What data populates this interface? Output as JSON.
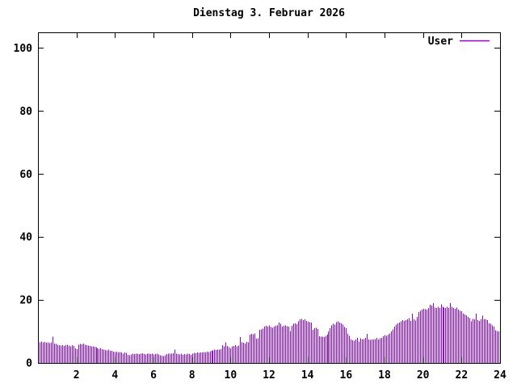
{
  "page": {
    "background": "#ffffff",
    "text_color": "#000000"
  },
  "chart_data": {
    "type": "bar",
    "style": "impulses",
    "title": "Dienstag 3. Februar 2026",
    "xlabel": "",
    "ylabel": "",
    "xlim": [
      0,
      24
    ],
    "ylim": [
      0,
      105
    ],
    "grid": false,
    "axis_color": "#000000",
    "legend": {
      "position": "top-right",
      "entries": [
        "User"
      ]
    },
    "x_ticks": {
      "values": [
        2,
        4,
        6,
        8,
        10,
        12,
        14,
        16,
        18,
        20,
        22,
        24
      ],
      "labels": [
        "2",
        "4",
        "6",
        "8",
        "10",
        "12",
        "14",
        "16",
        "18",
        "20",
        "22",
        "24"
      ]
    },
    "y_ticks": {
      "values": [
        0,
        20,
        40,
        60,
        80,
        100
      ],
      "labels": [
        "0",
        "20",
        "40",
        "60",
        "80",
        "100"
      ]
    },
    "series": [
      {
        "name": "User",
        "color": "#9400d3",
        "interval_minutes": 5,
        "x_unit": "hour-of-day",
        "values": [
          6.6,
          6.8,
          6.5,
          6.7,
          6.4,
          6.6,
          6.3,
          6.5,
          8.3,
          6.2,
          6.0,
          5.8,
          5.6,
          5.5,
          5.7,
          5.4,
          5.6,
          5.8,
          5.5,
          5.3,
          5.6,
          5.4,
          4.6,
          4.4,
          5.8,
          6.0,
          5.9,
          6.1,
          5.8,
          5.6,
          5.5,
          5.4,
          5.2,
          5.3,
          5.1,
          5.0,
          4.6,
          4.5,
          4.7,
          4.4,
          4.3,
          4.1,
          4.0,
          4.2,
          3.9,
          3.8,
          3.6,
          3.5,
          3.6,
          3.4,
          3.5,
          3.3,
          3.0,
          3.4,
          3.2,
          2.6,
          2.5,
          2.7,
          2.9,
          2.8,
          2.9,
          3.0,
          2.8,
          2.9,
          3.1,
          2.8,
          2.7,
          2.9,
          3.0,
          2.8,
          2.9,
          2.7,
          2.8,
          2.9,
          2.7,
          2.4,
          2.3,
          2.2,
          2.4,
          2.8,
          2.9,
          3.0,
          2.9,
          3.1,
          4.2,
          3.0,
          2.8,
          2.7,
          2.9,
          2.6,
          2.8,
          2.7,
          2.9,
          2.8,
          2.6,
          2.9,
          3.2,
          3.1,
          3.3,
          3.2,
          3.4,
          3.3,
          3.5,
          3.4,
          3.6,
          3.5,
          3.7,
          3.9,
          4.0,
          4.2,
          4.1,
          4.3,
          4.2,
          4.4,
          5.6,
          5.2,
          6.6,
          5.4,
          5.0,
          4.6,
          5.2,
          5.4,
          5.6,
          5.3,
          5.5,
          8.2,
          6.6,
          6.4,
          6.2,
          6.7,
          6.5,
          9.0,
          9.3,
          9.1,
          9.4,
          7.7,
          7.8,
          10.5,
          10.7,
          10.9,
          11.5,
          11.8,
          11.6,
          11.9,
          11.4,
          11.2,
          11.6,
          11.8,
          12.0,
          12.8,
          12.4,
          11.6,
          11.8,
          12.0,
          11.7,
          11.5,
          10.2,
          11.8,
          12.4,
          12.6,
          12.3,
          13.2,
          13.8,
          14.0,
          13.6,
          13.9,
          13.4,
          13.1,
          13.0,
          12.8,
          10.5,
          11.0,
          11.2,
          10.8,
          8.5,
          8.3,
          8.4,
          8.2,
          8.6,
          9.0,
          10.0,
          11.0,
          12.0,
          12.4,
          12.2,
          13.0,
          13.2,
          12.8,
          12.6,
          12.2,
          11.4,
          11.0,
          9.2,
          8.6,
          7.4,
          7.2,
          7.0,
          7.4,
          7.9,
          6.8,
          7.8,
          7.4,
          7.6,
          7.9,
          9.2,
          7.4,
          7.3,
          7.5,
          7.4,
          7.6,
          7.9,
          7.5,
          7.8,
          8.0,
          8.5,
          8.8,
          8.6,
          9.0,
          9.4,
          10.0,
          10.6,
          11.6,
          12.2,
          12.6,
          12.9,
          13.2,
          13.6,
          13.4,
          13.6,
          13.9,
          14.2,
          13.4,
          15.6,
          13.8,
          13.5,
          14.6,
          16.2,
          16.6,
          17.0,
          17.2,
          17.1,
          16.9,
          17.4,
          18.5,
          18.2,
          19.0,
          17.6,
          17.4,
          17.8,
          17.5,
          18.6,
          17.9,
          17.6,
          17.4,
          17.8,
          17.5,
          19.0,
          17.8,
          17.5,
          17.2,
          17.6,
          17.0,
          16.6,
          16.4,
          15.6,
          15.4,
          15.2,
          14.6,
          14.2,
          13.2,
          14.0,
          13.8,
          15.6,
          13.6,
          13.4,
          13.8,
          15.0,
          13.9,
          13.8,
          13.6,
          12.6,
          12.4,
          11.9,
          11.6,
          10.4,
          10.2,
          10.0,
          8.6
        ]
      }
    ]
  }
}
